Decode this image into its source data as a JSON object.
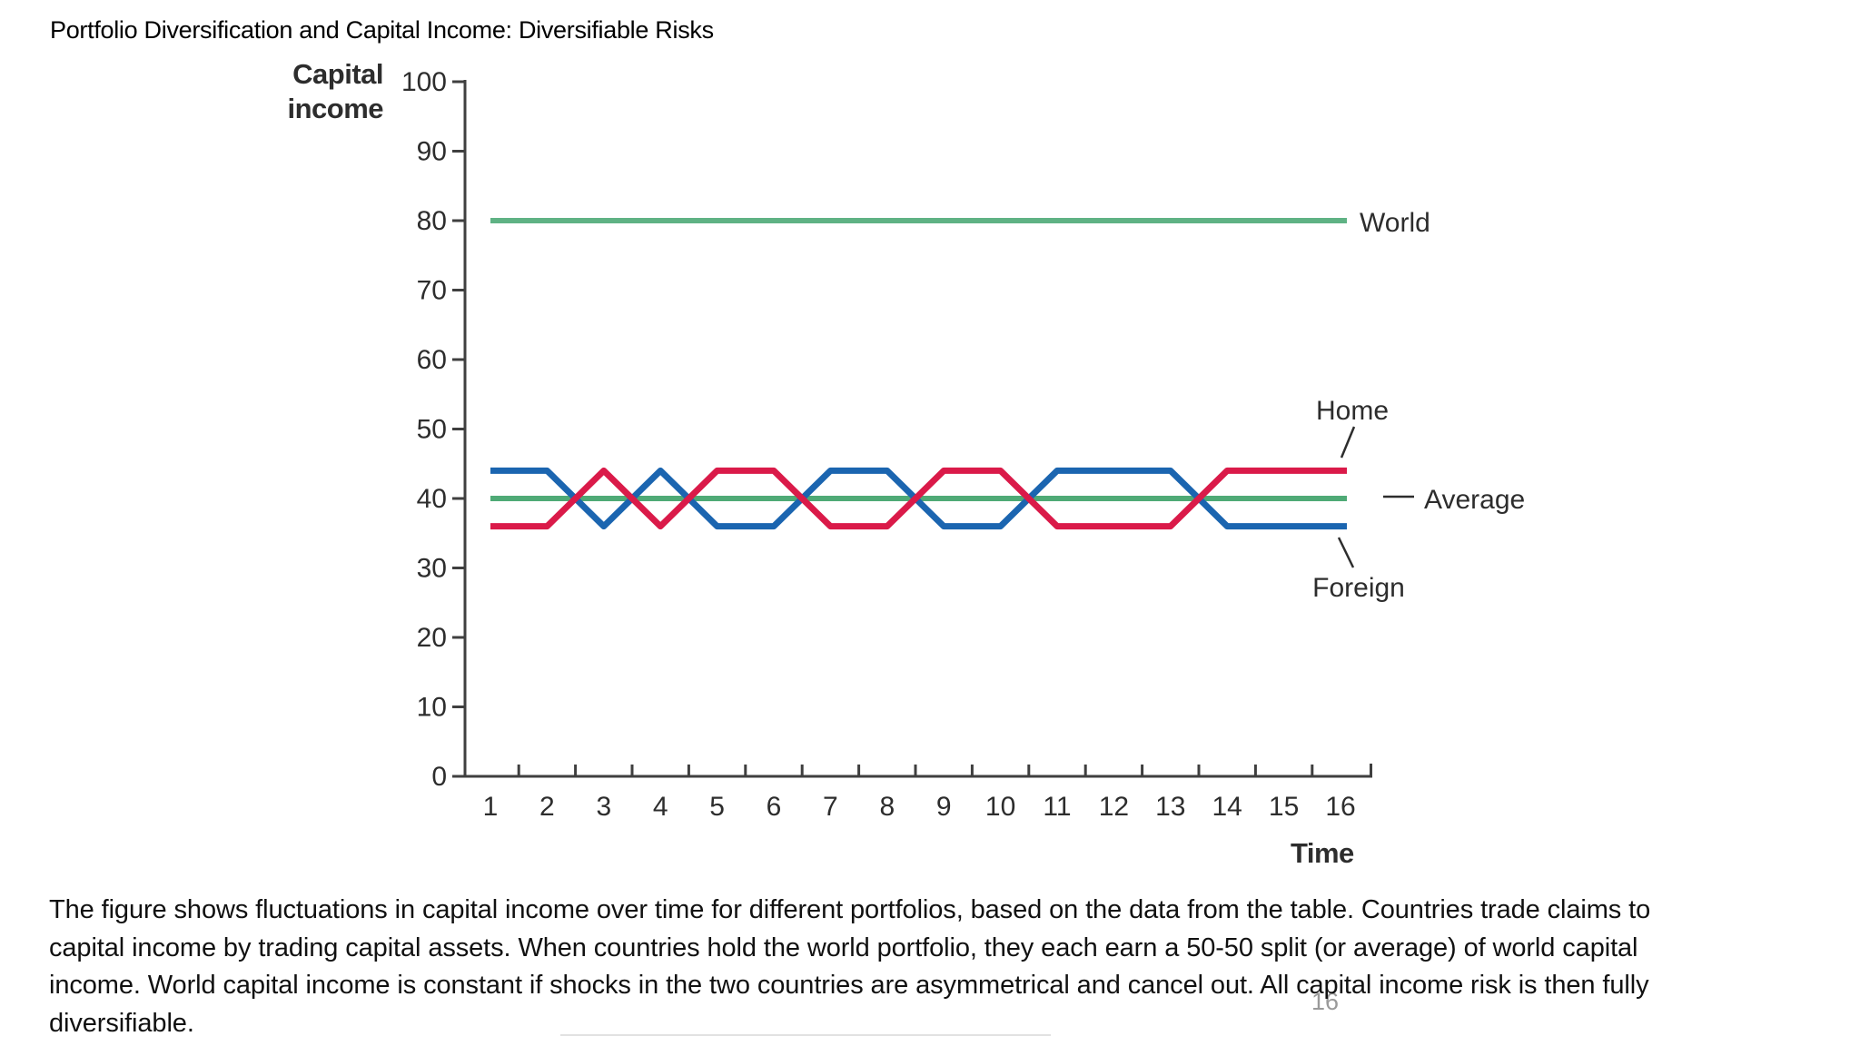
{
  "title": "Portfolio Diversification and Capital Income: Diversifiable Risks",
  "page_number": "16",
  "caption": {
    "lines": [
      "The figure shows fluctuations in capital income over time for different portfolios, based on the data from the table. Countries trade claims to",
      "capital income by trading capital assets. When countries hold the world portfolio, they each earn a 50-50 split (or average) of world capital",
      "income. World capital income is constant if shocks in the two countries are asymmetrical and cancel out. All capital income risk is then fully",
      "diversifiable."
    ]
  },
  "chart_data": {
    "type": "line",
    "title": "",
    "xlabel": "Time",
    "ylabel": "Capital income",
    "ylabel_lines": [
      "Capital",
      "income"
    ],
    "x": [
      1,
      2,
      3,
      4,
      5,
      6,
      7,
      8,
      9,
      10,
      11,
      12,
      13,
      14,
      15,
      16
    ],
    "y_ticks": [
      0,
      10,
      20,
      30,
      40,
      50,
      60,
      70,
      80,
      90,
      100
    ],
    "ylim": [
      0,
      100
    ],
    "grid": false,
    "legend_position": "right-annotations",
    "axis_color": "#3f3f3f",
    "tick_label_color": "#2d2d2d",
    "annotation_color": "#2d2d2d",
    "series": [
      {
        "name": "World",
        "color": "#5fb284",
        "width": 6,
        "values": [
          80,
          80,
          80,
          80,
          80,
          80,
          80,
          80,
          80,
          80,
          80,
          80,
          80,
          80,
          80,
          80
        ]
      },
      {
        "name": "Average",
        "color": "#4faa76",
        "width": 6,
        "values": [
          40,
          40,
          40,
          40,
          40,
          40,
          40,
          40,
          40,
          40,
          40,
          40,
          40,
          40,
          40,
          40
        ]
      },
      {
        "name": "Foreign",
        "color": "#1b65b0",
        "width": 7,
        "values": [
          44,
          44,
          36,
          44,
          36,
          36,
          44,
          44,
          36,
          36,
          44,
          44,
          44,
          36,
          36,
          36
        ]
      },
      {
        "name": "Home",
        "color": "#da1a49",
        "width": 7,
        "values": [
          36,
          36,
          44,
          36,
          44,
          44,
          36,
          36,
          44,
          44,
          36,
          36,
          36,
          44,
          44,
          44
        ]
      }
    ]
  }
}
